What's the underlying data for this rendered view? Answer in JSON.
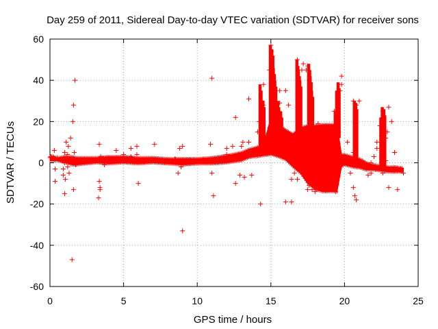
{
  "chart_data": {
    "type": "scatter",
    "title": "Day 259 of 2011, Sidereal Day-to-day VTEC variation (SDTVAR) for receiver sons",
    "xlabel": "GPS time / hours",
    "ylabel": "SDTVAR / TECUs",
    "xlim": [
      0,
      25
    ],
    "ylim": [
      -60,
      60
    ],
    "xticks": [
      0,
      5,
      10,
      15,
      20,
      25
    ],
    "yticks": [
      -60,
      -40,
      -20,
      0,
      20,
      40,
      60
    ],
    "xtick_labels": [
      "0",
      "5",
      "10",
      "15",
      "20",
      "25"
    ],
    "ytick_labels": [
      "-60",
      "-40",
      "-20",
      "0",
      "20",
      "40",
      "60"
    ],
    "grid": true,
    "marker": "+",
    "color": "#ff0000",
    "series": [
      {
        "name": "SDTVAR",
        "x": [
          0.0,
          0.05,
          0.1,
          0.15,
          0.2,
          0.25,
          0.3,
          0.35,
          0.4,
          0.5,
          0.6,
          0.7,
          0.8,
          0.9,
          1.0,
          1.0,
          1.05,
          1.1,
          1.1,
          1.15,
          1.2,
          1.2,
          1.25,
          1.3,
          1.35,
          1.4,
          1.45,
          1.5,
          1.5,
          1.55,
          1.6,
          1.6,
          1.6,
          1.65,
          1.7,
          1.7,
          1.75,
          1.0,
          0.9,
          0.35,
          1.3,
          3.3,
          3.35,
          3.4,
          3.45,
          3.5,
          3.6,
          3.7,
          3.8,
          3.9,
          4.0,
          4.2,
          4.4,
          4.5,
          4.6,
          4.8,
          5.0,
          5.2,
          5.4,
          5.5,
          5.6,
          5.8,
          5.9,
          6.0,
          6.2,
          6.4,
          6.6,
          6.8,
          7.0,
          7.1,
          7.2,
          7.5,
          7.8,
          8.0,
          8.3,
          8.5,
          8.7,
          8.8,
          8.9,
          9.0,
          9.0,
          9.1,
          9.2,
          9.5,
          9.8,
          10.0,
          10.2,
          10.4,
          10.6,
          10.8,
          11.0,
          11.0,
          10.9,
          11.1,
          11.2,
          11.5,
          11.8,
          12.0,
          12.2,
          12.4,
          12.6,
          12.8,
          13.0,
          13.1,
          13.2,
          13.4,
          13.5,
          13.6,
          13.8,
          14.0,
          14.2,
          14.3,
          14.4,
          14.5,
          14.6,
          14.8,
          14.9,
          15.0,
          15.05,
          15.1,
          15.2,
          15.3,
          15.4,
          15.5,
          3.35,
          3.4,
          6.0,
          7.0,
          4.5,
          5.5,
          5.9,
          8.9,
          9.0,
          11.0,
          12.0,
          13.7,
          12.6,
          14.3,
          14.5,
          13.0,
          12.9,
          13.5,
          14.7,
          14.1,
          13.8,
          16.0,
          16.2,
          16.4,
          16.6,
          16.8,
          17.0,
          17.2,
          17.4,
          17.6,
          17.8,
          18.0,
          18.2,
          18.4,
          18.6,
          18.8,
          19.0,
          19.2,
          19.4,
          19.6,
          19.8,
          20.0,
          20.2,
          20.4,
          20.6,
          20.8,
          21.0,
          21.2,
          21.4,
          21.6,
          21.8,
          22.0,
          22.2,
          22.4,
          22.6,
          22.8,
          23.0,
          23.2,
          23.4,
          23.6,
          23.8,
          24.0,
          16.4,
          16.0,
          15.6,
          16.2,
          16.9,
          17.1,
          17.5,
          17.6,
          17.7,
          19.3,
          19.5,
          19.7,
          19.8,
          20.6,
          20.7,
          20.8,
          20.6,
          21.8,
          22.2,
          22.5,
          22.6,
          22.8,
          22.9,
          23.0,
          23.4,
          16.8,
          17.5,
          15.6
        ],
        "y": [
          2.5,
          3.0,
          2.8,
          2.0,
          3.0,
          2.5,
          6.0,
          -9.0,
          2.0,
          2.5,
          1.5,
          1.0,
          2.0,
          -3.0,
          -15.0,
          5.0,
          -8.0,
          10.0,
          3.0,
          1.0,
          -2.0,
          4.0,
          8.0,
          -5.0,
          2.0,
          12.0,
          0.5,
          2.0,
          -47.0,
          20.0,
          28.0,
          1.5,
          -13.0,
          5.0,
          40.0,
          2.0,
          -1.0,
          0.0,
          -6.0,
          -3.0,
          1.5,
          -17.0,
          9.0,
          -13.0,
          3.0,
          2.0,
          1.5,
          -1.0,
          2.0,
          1.0,
          2.5,
          1.5,
          1.0,
          6.0,
          2.0,
          1.0,
          4.0,
          1.5,
          1.0,
          7.0,
          2.0,
          1.0,
          4.0,
          1.5,
          1.0,
          0.5,
          1.0,
          1.5,
          2.0,
          9.0,
          1.5,
          1.0,
          0.0,
          1.5,
          1.0,
          2.0,
          -5.0,
          7.0,
          1.0,
          -33.0,
          8.0,
          1.0,
          0.5,
          0.5,
          1.0,
          1.0,
          0.5,
          1.5,
          1.0,
          1.5,
          41.0,
          2.0,
          9.0,
          -16.0,
          1.5,
          2.0,
          3.0,
          4.0,
          3.0,
          8.0,
          22.0,
          4.0,
          4.0,
          10.0,
          -7.0,
          5.0,
          31.0,
          4.0,
          5.0,
          5.0,
          20.0,
          6.0,
          30.0,
          38.0,
          5.0,
          7.0,
          45.0,
          57.0,
          54.0,
          40.0,
          30.0,
          29.0,
          25.0,
          20.0,
          -9.0,
          -12.0,
          -10.0,
          1.0,
          2.0,
          3.0,
          8.0,
          -2.0,
          0.0,
          -5.0,
          7.0,
          -6.0,
          -10.0,
          -20.0,
          28.0,
          8.0,
          -6.0,
          10.0,
          8.0,
          15.0,
          6.0,
          -19.0,
          12.0,
          -8.0,
          -5.0,
          50.0,
          15.0,
          48.0,
          45.0,
          -11.0,
          -13.0,
          -14.0,
          19.0,
          0.0,
          1.0,
          -12.0,
          18.0,
          15.0,
          -14.0,
          15.0,
          42.0,
          3.0,
          10.0,
          -5.0,
          5.0,
          -18.0,
          30.0,
          1.0,
          0.0,
          -6.0,
          0.0,
          3.0,
          10.0,
          18.0,
          -5.0,
          1.0,
          27.0,
          20.0,
          5.0,
          -13.0,
          -3.0,
          -5.0,
          -19.0,
          35.0,
          29.0,
          28.0,
          30.0,
          45.0,
          47.0,
          40.0,
          31.0,
          25.0,
          22.0,
          35.0,
          38.0,
          -12.0,
          -16.0,
          28.0,
          30.0,
          -5.0,
          7.0,
          13.0,
          25.0,
          12.0,
          15.0,
          -12.0,
          5.0,
          -8.0,
          -13.0,
          35.0
        ]
      }
    ],
    "dense_envelope": {
      "description": "Dense continuous data band (x, ymin, ymax)",
      "points": [
        [
          0.0,
          1.0,
          3.0
        ],
        [
          0.5,
          1.0,
          2.5
        ],
        [
          1.0,
          0.0,
          3.0
        ],
        [
          1.5,
          -1.0,
          3.0
        ],
        [
          1.8,
          -1.0,
          2.5
        ],
        [
          3.2,
          0.0,
          2.5
        ],
        [
          4.0,
          -0.5,
          3.0
        ],
        [
          5.0,
          0.0,
          3.0
        ],
        [
          6.0,
          -0.5,
          2.5
        ],
        [
          7.0,
          0.0,
          2.5
        ],
        [
          8.0,
          -0.5,
          2.0
        ],
        [
          9.0,
          -1.0,
          2.0
        ],
        [
          10.0,
          -0.5,
          2.0
        ],
        [
          11.0,
          -0.5,
          2.5
        ],
        [
          12.0,
          0.0,
          3.5
        ],
        [
          13.0,
          1.0,
          5.0
        ],
        [
          13.5,
          2.5,
          6.5
        ],
        [
          14.0,
          3.0,
          7.5
        ],
        [
          14.5,
          3.5,
          8.5
        ],
        [
          15.0,
          4.0,
          22.0
        ],
        [
          15.5,
          3.0,
          19.0
        ],
        [
          16.0,
          1.5,
          16.0
        ],
        [
          16.5,
          -2.0,
          14.0
        ],
        [
          17.0,
          -5.0,
          17.0
        ],
        [
          17.5,
          -10.0,
          18.0
        ],
        [
          18.0,
          -13.0,
          18.0
        ],
        [
          18.5,
          -14.0,
          18.5
        ],
        [
          19.0,
          -14.0,
          18.5
        ],
        [
          19.5,
          -14.0,
          18.5
        ],
        [
          19.8,
          -2.0,
          4.0
        ],
        [
          20.0,
          -1.0,
          4.0
        ],
        [
          20.5,
          -2.0,
          3.0
        ],
        [
          21.0,
          -2.5,
          2.0
        ],
        [
          21.5,
          -3.5,
          0.0
        ],
        [
          22.0,
          -3.5,
          -1.0
        ],
        [
          22.5,
          -4.0,
          -1.5
        ],
        [
          23.0,
          -4.5,
          -2.0
        ],
        [
          23.5,
          -4.5,
          -2.0
        ],
        [
          24.0,
          -4.5,
          -2.5
        ]
      ]
    },
    "spikes": {
      "description": "Vertical dense spike traces (x, ymin, ymax)",
      "items": [
        [
          14.3,
          5.0,
          38.0
        ],
        [
          14.5,
          5.0,
          30.0
        ],
        [
          15.0,
          10.0,
          57.0
        ],
        [
          15.1,
          10.0,
          55.0
        ],
        [
          15.2,
          10.0,
          46.0
        ],
        [
          15.3,
          10.0,
          40.0
        ],
        [
          15.5,
          10.0,
          30.0
        ],
        [
          15.7,
          10.0,
          25.0
        ],
        [
          16.8,
          10.0,
          50.0
        ],
        [
          16.9,
          10.0,
          45.0
        ],
        [
          17.0,
          8.0,
          40.0
        ],
        [
          17.6,
          10.0,
          48.0
        ],
        [
          17.7,
          10.0,
          42.0
        ],
        [
          17.8,
          10.0,
          35.0
        ],
        [
          19.4,
          10.0,
          25.0
        ],
        [
          19.5,
          12.0,
          35.0
        ],
        [
          19.6,
          12.0,
          39.0
        ],
        [
          20.7,
          0.0,
          30.0
        ],
        [
          20.8,
          0.0,
          29.0
        ],
        [
          22.5,
          -2.0,
          22.0
        ],
        [
          22.6,
          -2.0,
          27.0
        ],
        [
          22.7,
          -2.0,
          26.0
        ]
      ]
    }
  }
}
